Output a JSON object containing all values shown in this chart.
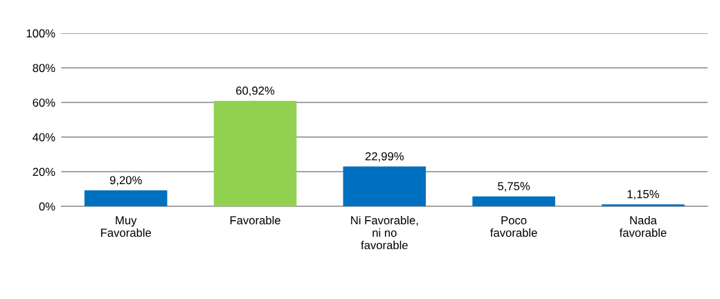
{
  "chart_data": {
    "type": "bar",
    "categories": [
      "Muy\nFavorable",
      "Favorable",
      "Ni Favorable,\nni no\nfavorable",
      "Poco\nfavorable",
      "Nada\nfavorable"
    ],
    "values": [
      9.2,
      60.92,
      22.99,
      5.75,
      1.15
    ],
    "colors": [
      "#0070c0",
      "#92d050",
      "#0070c0",
      "#0070c0",
      "#0070c0"
    ],
    "value_labels": [
      "9,20%",
      "60,92%",
      "22,99%",
      "5,75%",
      "1,15%"
    ],
    "ylim": [
      0,
      100
    ],
    "yticks": [
      {
        "value": 0,
        "label": "0%"
      },
      {
        "value": 20,
        "label": "20%"
      },
      {
        "value": 40,
        "label": "40%"
      },
      {
        "value": 60,
        "label": "60%"
      },
      {
        "value": 80,
        "label": "80%"
      },
      {
        "value": 100,
        "label": "100%"
      }
    ],
    "grid": "y",
    "legend": false
  }
}
